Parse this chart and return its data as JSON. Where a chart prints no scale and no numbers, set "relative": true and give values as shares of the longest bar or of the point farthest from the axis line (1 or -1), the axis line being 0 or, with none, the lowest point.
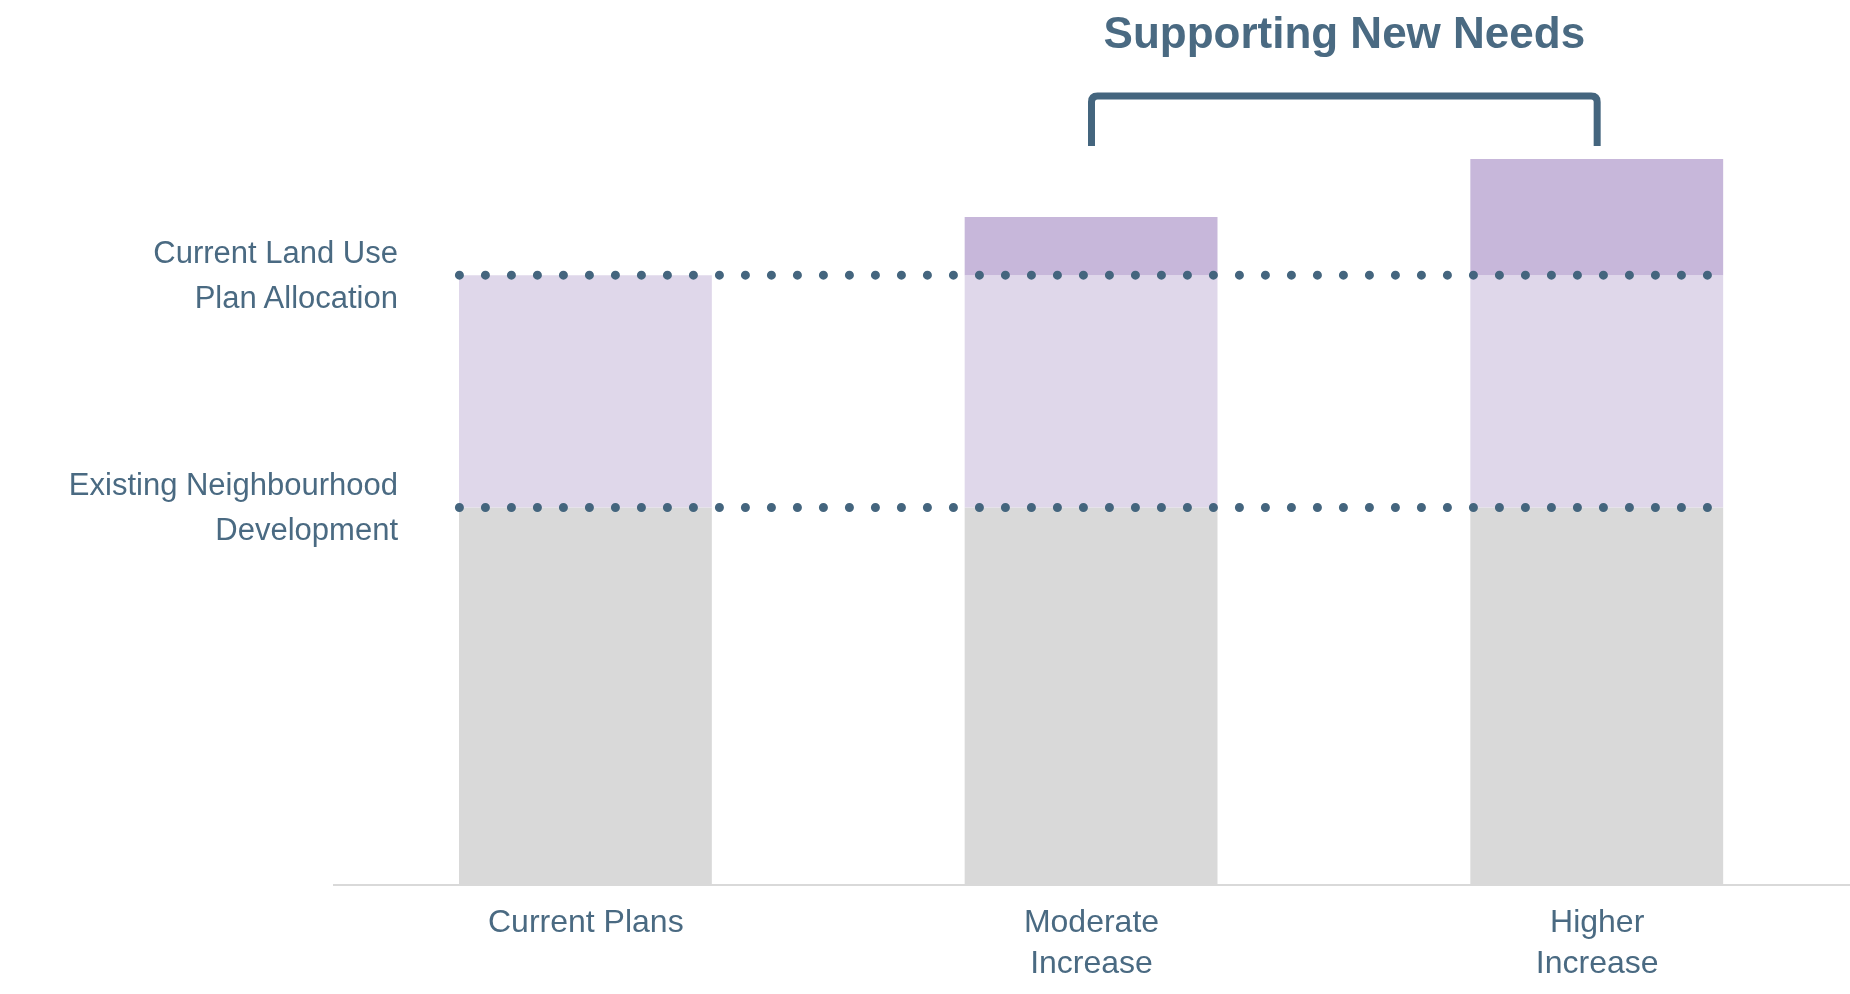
{
  "chart_data": {
    "type": "bar",
    "title": "Supporting New Needs",
    "relative": true,
    "stacked": true,
    "categories": [
      "Current Plans",
      "Moderate Increase",
      "Higher Increase"
    ],
    "series": [
      {
        "color": "#d9d9d9",
        "values": [
          0.52,
          0.52,
          0.52
        ]
      },
      {
        "color": "#dfd7ea",
        "values": [
          0.32,
          0.32,
          0.32
        ]
      },
      {
        "color": "#c7b7da",
        "values": [
          null,
          0.08,
          0.16
        ]
      }
    ],
    "ref_lines": [
      {
        "axis": "y",
        "value": 0.52,
        "label": "Existing Neighbourhood Development",
        "color": "#44657e",
        "line_style": "dotted"
      },
      {
        "axis": "y",
        "value": 0.84,
        "label": "Current Land Use Plan Allocation",
        "color": "#44657e",
        "line_style": "dotted"
      }
    ],
    "grid": false,
    "legend": false
  }
}
